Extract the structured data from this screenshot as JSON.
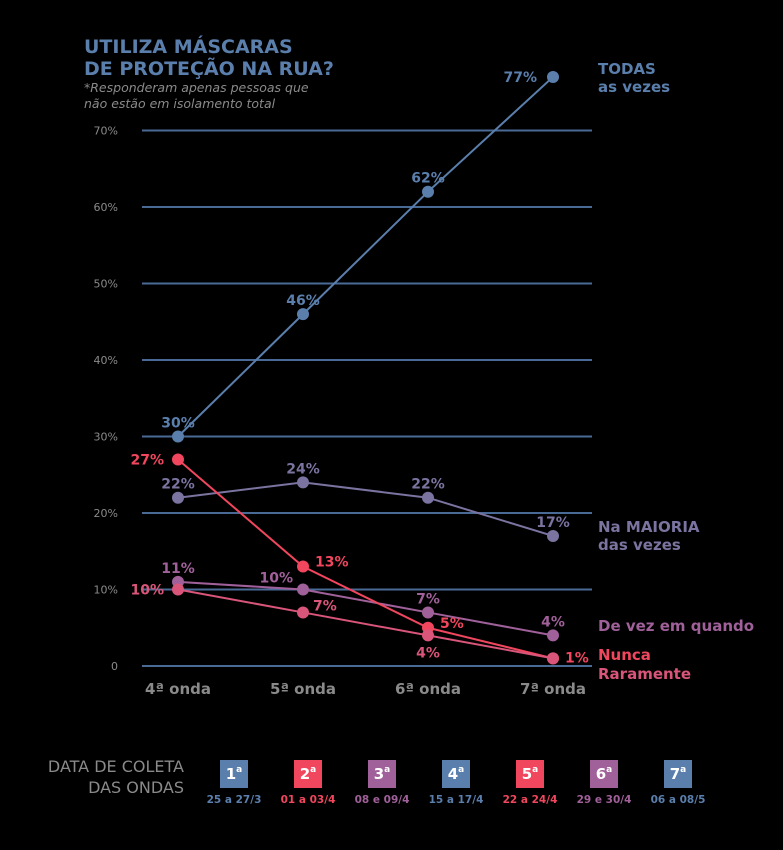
{
  "title_line1": "UTILIZA MÁSCARAS",
  "title_line2": "DE PROTEÇÃO NA RUA?",
  "subtitle_line1": "*Responderam apenas pessoas que",
  "subtitle_line2": "não estão em isolamento total",
  "chart_data": {
    "type": "line",
    "categories": [
      "4ª onda",
      "5ª onda",
      "6ª onda",
      "7ª onda"
    ],
    "ylim": [
      0,
      70
    ],
    "yticks": [
      0,
      10,
      20,
      30,
      40,
      50,
      60,
      70
    ],
    "ytick_labels": [
      "0",
      "10%",
      "20%",
      "30%",
      "40%",
      "50%",
      "60%",
      "70%"
    ],
    "grid": true,
    "series": [
      {
        "name_lines": [
          "TODAS",
          "as vezes"
        ],
        "color": "#5b7fad",
        "values": [
          30,
          46,
          62,
          77
        ],
        "labels": [
          "30%",
          "46%",
          "62%",
          "77%"
        ]
      },
      {
        "name_lines": [
          "Na MAIORIA",
          "das vezes"
        ],
        "color": "#7b73a0",
        "values": [
          22,
          24,
          22,
          17
        ],
        "labels": [
          "22%",
          "24%",
          "22%",
          "17%"
        ]
      },
      {
        "name_lines": [
          "De vez em quando"
        ],
        "color": "#a0609a",
        "values": [
          11,
          10,
          7,
          4
        ],
        "labels": [
          "11%",
          "10%",
          "7%",
          "4%"
        ]
      },
      {
        "name_lines": [
          "Nunca"
        ],
        "color": "#f0465e",
        "values": [
          27,
          13,
          5,
          1
        ],
        "labels": [
          "27%",
          "13%",
          "5%",
          "1%"
        ]
      },
      {
        "name_lines": [
          "Raramente"
        ],
        "color": "#d9557a",
        "values": [
          10,
          7,
          4,
          1
        ],
        "labels": [
          "10%",
          "7%",
          "4%",
          ""
        ]
      }
    ]
  },
  "legend": {
    "title_line1": "DATA DE COLETA",
    "title_line2": "DAS ONDAS",
    "waves": [
      {
        "num": "1",
        "sup": "a",
        "date": "25 a 27/3",
        "color": "#5b7fad"
      },
      {
        "num": "2",
        "sup": "a",
        "date": "01 a 03/4",
        "color": "#f0465e"
      },
      {
        "num": "3",
        "sup": "a",
        "date": "08 e 09/4",
        "color": "#a0609a"
      },
      {
        "num": "4",
        "sup": "a",
        "date": "15 a 17/4",
        "color": "#5b7fad"
      },
      {
        "num": "5",
        "sup": "a",
        "date": "22 a 24/4",
        "color": "#f0465e"
      },
      {
        "num": "6",
        "sup": "a",
        "date": "29 e 30/4",
        "color": "#a0609a"
      },
      {
        "num": "7",
        "sup": "a",
        "date": "06 a 08/5",
        "color": "#5b7fad"
      }
    ]
  }
}
